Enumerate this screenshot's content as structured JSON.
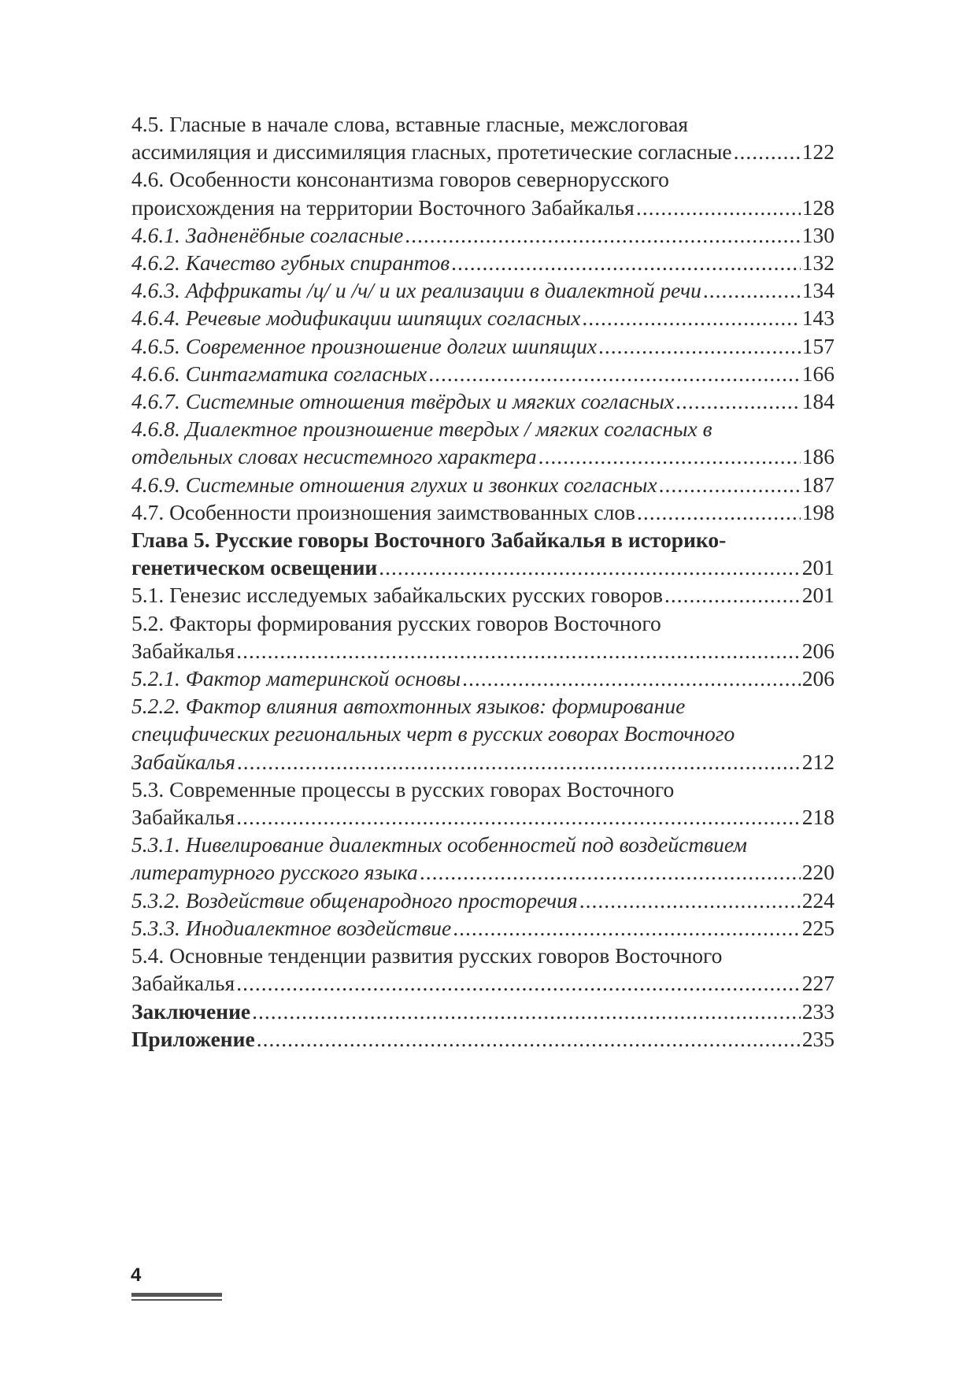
{
  "toc": [
    {
      "style": "normal",
      "lines": [
        "4.5. Гласные в начале слова, вставные гласные, межслоговая",
        "ассимиляция и диссимиляция гласных, протетические согласные"
      ],
      "page": "122"
    },
    {
      "style": "normal",
      "lines": [
        "4.6. Особенности консонантизма говоров севернорусского",
        "происхождения на территории Восточного Забайкалья"
      ],
      "page": "128"
    },
    {
      "style": "italic",
      "lines": [
        "4.6.1. Задненёбные согласные"
      ],
      "page": "130"
    },
    {
      "style": "italic",
      "lines": [
        "4.6.2. Качество губных спирантов"
      ],
      "page": "132"
    },
    {
      "style": "italic",
      "lines": [
        "4.6.3. Аффрикаты /ц/ и /ч/ и их реализации в диалектной речи"
      ],
      "page": "134"
    },
    {
      "style": "italic",
      "lines": [
        "4.6.4. Речевые модификации шипящих согласных"
      ],
      "page": "143"
    },
    {
      "style": "italic",
      "lines": [
        "4.6.5. Современное произношение долгих шипящих"
      ],
      "page": "157"
    },
    {
      "style": "italic",
      "lines": [
        "4.6.6. Синтагматика согласных"
      ],
      "page": "166"
    },
    {
      "style": "italic",
      "lines": [
        "4.6.7. Системные отношения твёрдых и мягких согласных"
      ],
      "page": "184"
    },
    {
      "style": "italic",
      "lines": [
        "4.6.8. Диалектное произношение твердых / мягких согласных в",
        "отдельных словах несистемного характера"
      ],
      "page": "186"
    },
    {
      "style": "italic",
      "lines": [
        "4.6.9. Системные отношения глухих и звонких согласных"
      ],
      "page": "187"
    },
    {
      "style": "normal",
      "lines": [
        "4.7. Особенности произношения заимствованных слов"
      ],
      "page": "198"
    },
    {
      "style": "bold",
      "lines": [
        "Глава 5. Русские говоры Восточного Забайкалья в историко-",
        "генетическом освещении"
      ],
      "page": "201"
    },
    {
      "style": "normal",
      "lines": [
        "5.1. Генезис исследуемых забайкальских русских говоров"
      ],
      "page": "201"
    },
    {
      "style": "normal",
      "lines": [
        "5.2. Факторы формирования русских говоров Восточного",
        "Забайкалья"
      ],
      "page": "206"
    },
    {
      "style": "italic",
      "lines": [
        "5.2.1. Фактор материнской основы"
      ],
      "page": "206"
    },
    {
      "style": "italic",
      "lines": [
        "5.2.2. Фактор влияния автохтонных языков: формирование",
        "специфических региональных черт в русских говорах Восточного",
        "Забайкалья"
      ],
      "page": "212"
    },
    {
      "style": "normal",
      "lines": [
        "5.3. Современные процессы в русских говорах Восточного",
        "Забайкалья"
      ],
      "page": "218"
    },
    {
      "style": "italic",
      "lines": [
        "5.3.1. Нивелирование диалектных особенностей под воздействием",
        "литературного русского языка"
      ],
      "page": "220"
    },
    {
      "style": "italic",
      "lines": [
        "5.3.2. Воздействие общенародного просторечия"
      ],
      "page": "224"
    },
    {
      "style": "italic",
      "lines": [
        "5.3.3. Инодиалектное воздействие"
      ],
      "page": "225"
    },
    {
      "style": "normal",
      "lines": [
        "5.4. Основные тенденции развития русских говоров Восточного",
        "Забайкалья"
      ],
      "page": "227"
    },
    {
      "style": "bold",
      "lines": [
        "Заключение"
      ],
      "page": "233"
    },
    {
      "style": "bold",
      "lines": [
        "Приложение"
      ],
      "page": "235"
    }
  ],
  "footer": {
    "page_number": "4"
  }
}
